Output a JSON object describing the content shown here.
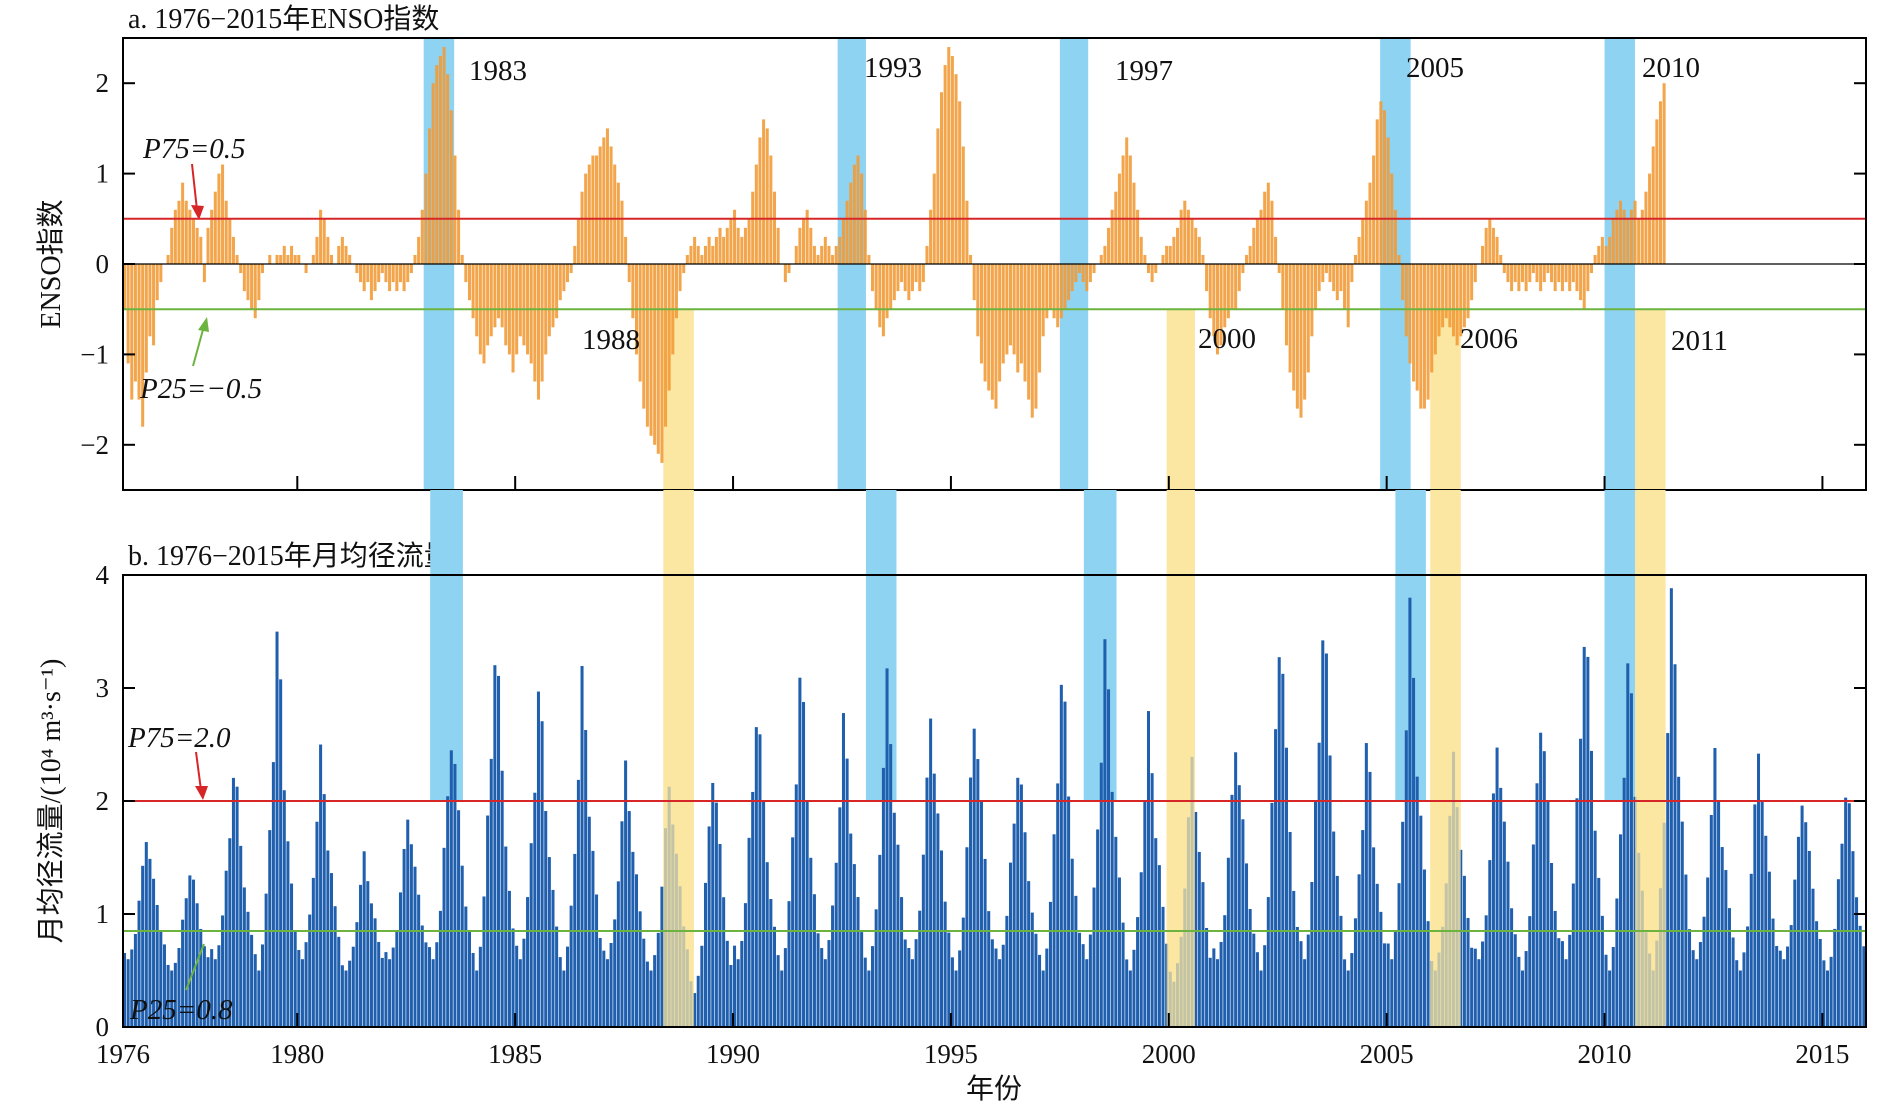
{
  "chart_data": [
    {
      "type": "bar",
      "title": "a. 1976−2015年ENSO指数",
      "ylabel": "ENSO指数",
      "xlim": [
        1976,
        2016
      ],
      "ylim": [
        -2.5,
        2.5
      ],
      "yticks": [
        2,
        1,
        0,
        -1,
        -2
      ],
      "yticklabels": [
        "2",
        "1",
        "0",
        "−1",
        "−2"
      ],
      "bar_color": "#f29b38",
      "x_start": 1976.0,
      "x_step_years": 0.08333,
      "values": [
        -0.5,
        -1.1,
        -1.5,
        -1.3,
        -1.5,
        -1.8,
        -1.2,
        -0.8,
        -0.9,
        -0.4,
        -0.2,
        0.0,
        0.1,
        0.4,
        0.6,
        0.7,
        0.9,
        0.7,
        0.6,
        0.5,
        0.4,
        0.3,
        -0.2,
        0.4,
        0.6,
        0.8,
        1.0,
        1.1,
        0.7,
        0.5,
        0.3,
        0.1,
        -0.1,
        -0.3,
        -0.4,
        -0.5,
        -0.6,
        -0.4,
        -0.1,
        0.0,
        0.1,
        0.0,
        0.1,
        0.1,
        0.2,
        0.1,
        0.2,
        0.1,
        0.1,
        0.0,
        -0.1,
        0.0,
        0.1,
        0.3,
        0.6,
        0.5,
        0.3,
        0.1,
        0.0,
        0.2,
        0.3,
        0.2,
        0.1,
        0.0,
        -0.1,
        -0.2,
        -0.3,
        -0.2,
        -0.4,
        -0.3,
        -0.2,
        -0.1,
        -0.2,
        -0.3,
        -0.2,
        -0.3,
        -0.2,
        -0.3,
        -0.2,
        -0.1,
        0.1,
        0.3,
        0.6,
        1.0,
        1.5,
        2.0,
        2.2,
        2.3,
        2.4,
        2.1,
        1.7,
        1.2,
        0.6,
        0.1,
        -0.2,
        -0.4,
        -0.6,
        -0.8,
        -1.0,
        -1.1,
        -0.9,
        -0.8,
        -0.7,
        -0.6,
        -0.7,
        -0.9,
        -1.0,
        -1.2,
        -1.0,
        -0.8,
        -0.9,
        -1.0,
        -1.1,
        -1.3,
        -1.5,
        -1.3,
        -1.0,
        -0.8,
        -0.7,
        -0.6,
        -0.4,
        -0.3,
        -0.2,
        -0.1,
        0.2,
        0.5,
        0.8,
        1.0,
        1.1,
        1.2,
        1.2,
        1.3,
        1.4,
        1.5,
        1.3,
        1.1,
        0.9,
        0.7,
        0.3,
        -0.2,
        -0.6,
        -1.0,
        -1.3,
        -1.6,
        -1.8,
        -1.9,
        -2.0,
        -2.1,
        -2.2,
        -1.8,
        -1.4,
        -1.0,
        -0.6,
        -0.3,
        -0.1,
        0.1,
        0.2,
        0.3,
        0.2,
        0.1,
        0.2,
        0.3,
        0.2,
        0.3,
        0.4,
        0.3,
        0.4,
        0.5,
        0.6,
        0.4,
        0.3,
        0.4,
        0.5,
        0.8,
        1.1,
        1.4,
        1.6,
        1.5,
        1.2,
        0.8,
        0.4,
        0.0,
        -0.2,
        -0.1,
        0.0,
        0.2,
        0.4,
        0.5,
        0.6,
        0.4,
        0.2,
        0.1,
        0.2,
        0.3,
        0.2,
        0.1,
        0.2,
        0.3,
        0.5,
        0.7,
        0.9,
        1.1,
        1.2,
        1.0,
        0.6,
        0.1,
        -0.3,
        -0.5,
        -0.7,
        -0.8,
        -0.6,
        -0.5,
        -0.4,
        -0.3,
        -0.2,
        -0.3,
        -0.4,
        -0.3,
        -0.2,
        -0.3,
        -0.2,
        0.2,
        0.6,
        1.0,
        1.5,
        1.9,
        2.2,
        2.4,
        2.3,
        2.1,
        1.8,
        1.3,
        0.7,
        0.1,
        -0.4,
        -0.8,
        -1.1,
        -1.3,
        -1.4,
        -1.5,
        -1.6,
        -1.3,
        -1.1,
        -1.0,
        -0.9,
        -1.0,
        -1.2,
        -1.1,
        -1.3,
        -1.5,
        -1.7,
        -1.6,
        -1.2,
        -0.8,
        -0.6,
        -0.5,
        -0.6,
        -0.7,
        -0.6,
        -0.5,
        -0.4,
        -0.3,
        -0.2,
        -0.1,
        -0.2,
        -0.3,
        -0.2,
        -0.1,
        0.0,
        0.1,
        0.2,
        0.4,
        0.6,
        0.8,
        1.0,
        1.2,
        1.4,
        1.2,
        0.9,
        0.6,
        0.3,
        0.1,
        -0.1,
        -0.2,
        -0.1,
        0.0,
        0.1,
        0.2,
        0.2,
        0.3,
        0.4,
        0.6,
        0.7,
        0.6,
        0.5,
        0.4,
        0.3,
        0.1,
        -0.3,
        -0.6,
        -0.8,
        -1.0,
        -0.9,
        -0.7,
        -0.6,
        -0.5,
        -0.5,
        -0.3,
        -0.1,
        0.1,
        0.2,
        0.4,
        0.5,
        0.6,
        0.8,
        0.9,
        0.7,
        0.3,
        -0.1,
        -0.5,
        -0.9,
        -1.2,
        -1.4,
        -1.6,
        -1.7,
        -1.5,
        -1.2,
        -0.8,
        -0.5,
        -0.3,
        -0.2,
        -0.1,
        -0.2,
        -0.3,
        -0.4,
        -0.3,
        -0.5,
        -0.7,
        -0.2,
        0.1,
        0.3,
        0.5,
        0.7,
        0.9,
        1.2,
        1.6,
        1.8,
        1.7,
        1.4,
        1.0,
        0.6,
        0.1,
        -0.4,
        -0.8,
        -1.1,
        -1.3,
        -1.4,
        -1.6,
        -1.6,
        -1.5,
        -1.2,
        -1.0,
        -0.8,
        -0.7,
        -0.6,
        -0.7,
        -0.8,
        -0.9,
        -0.8,
        -0.7,
        -0.6,
        -0.4,
        -0.2,
        0.0,
        0.2,
        0.4,
        0.5,
        0.4,
        0.3,
        0.1,
        -0.1,
        -0.2,
        -0.3,
        -0.2,
        -0.3,
        -0.2,
        -0.3,
        -0.2,
        -0.1,
        -0.2,
        -0.3,
        -0.2,
        -0.1,
        -0.2,
        -0.3,
        -0.2,
        -0.3,
        -0.2,
        -0.3,
        -0.2,
        -0.3,
        -0.4,
        -0.5,
        -0.3,
        -0.1,
        0.1,
        0.2,
        0.3,
        0.2,
        0.3,
        0.5,
        0.6,
        0.7,
        0.6,
        0.5,
        0.6,
        0.7,
        0.5,
        0.6,
        0.8,
        1.0,
        1.3,
        1.6,
        1.8,
        2.0
      ]
    },
    {
      "type": "bar",
      "title": "b. 1976−2015年月均径流量",
      "ylabel": "月均径流量/(10⁴ m³·s⁻¹)",
      "xlabel": "年份",
      "xlim": [
        1976,
        2016
      ],
      "ylim": [
        0,
        4
      ],
      "yticks": [
        4,
        3,
        2,
        1,
        0
      ],
      "xticks": [
        1976,
        1980,
        1985,
        1990,
        1995,
        2000,
        2005,
        2010,
        2015
      ],
      "bar_color": "#1f5fae",
      "x_start": 1976.0,
      "x_step_years": 0.08333,
      "annual_peak_values": [
        1.8,
        1.5,
        2.4,
        3.6,
        2.5,
        1.6,
        2.0,
        2.8,
        3.6,
        3.1,
        3.2,
        2.4,
        2.3,
        2.5,
        3.0,
        3.3,
        2.8,
        3.2,
        2.9,
        3.0,
        2.5,
        3.3,
        3.5,
        2.8,
        2.5,
        2.7,
        3.8,
        3.8,
        2.6,
        3.8,
        2.5,
        2.7,
        3.0,
        3.8,
        3.4,
        3.9,
        2.5,
        2.6,
        2.2,
        2.3
      ],
      "annual_low_values": [
        0.6,
        0.5,
        0.6,
        0.5,
        0.6,
        0.5,
        0.6,
        0.6,
        0.5,
        0.6,
        0.5,
        0.6,
        0.5,
        0.3,
        0.6,
        0.5,
        0.6,
        0.5,
        0.6,
        0.5,
        0.6,
        0.5,
        0.6,
        0.5,
        0.4,
        0.6,
        0.5,
        0.6,
        0.5,
        0.6,
        0.5,
        0.6,
        0.5,
        0.6,
        0.5,
        0.5,
        0.6,
        0.5,
        0.6,
        0.5
      ]
    }
  ],
  "panel_a": {
    "title": "a. 1976−2015年ENSO指数",
    "ylabel": "ENSO指数",
    "p75_label": "P75=0.5",
    "p75_value": 0.5,
    "p25_label": "P25=−0.5",
    "p25_value": -0.5,
    "event_labels": [
      "1983",
      "1988",
      "1993",
      "1997",
      "2000",
      "2005",
      "2006",
      "2010",
      "2011"
    ],
    "el_nino_spans": [
      [
        1982.9,
        1983.6
      ],
      [
        1992.4,
        1993.05
      ],
      [
        1997.5,
        1998.15
      ],
      [
        2004.85,
        2005.55
      ],
      [
        2010.0,
        2010.7
      ]
    ],
    "la_nina_spans": [
      [
        1988.4,
        1989.1
      ],
      [
        1999.95,
        2000.6
      ],
      [
        2006.0,
        2006.7
      ],
      [
        2010.7,
        2011.4
      ]
    ]
  },
  "panel_b": {
    "title": "b. 1976−2015年月均径流量",
    "ylabel": "月均径流量/(10⁴ m³·s⁻¹)",
    "xlabel": "年份",
    "p75_label": "P75=2.0",
    "p75_value": 2.0,
    "p25_label": "P25=0.8",
    "p25_value": 0.85,
    "high_flow_spans": [
      [
        1983.05,
        1983.8
      ],
      [
        1993.05,
        1993.75
      ],
      [
        1998.05,
        1998.8
      ],
      [
        2005.2,
        2005.9
      ],
      [
        2010.0,
        2010.7
      ]
    ],
    "low_flow_spans": [
      [
        1988.4,
        1989.1
      ],
      [
        1999.95,
        2000.6
      ],
      [
        2006.0,
        2006.7
      ],
      [
        2010.7,
        2011.4
      ]
    ]
  },
  "colors": {
    "enso_bar": "#f29b38",
    "runoff_bar": "#1f5fae",
    "p75_line": "#d62628",
    "p25_line": "#6cb33f",
    "el_nino_band": "#8fd3f2",
    "la_nina_band": "#fbe6a2"
  }
}
